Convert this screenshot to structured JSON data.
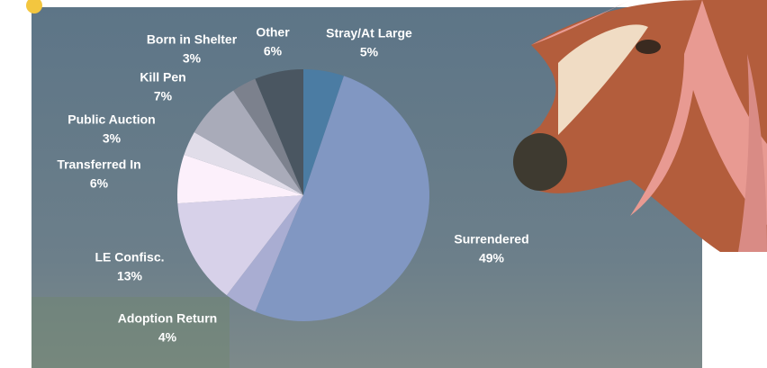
{
  "chart_data": {
    "type": "pie",
    "categories": [
      "Stray/At Large",
      "Surrendered",
      "Adoption Return",
      "LE Confisc.",
      "Transferred In",
      "Public Auction",
      "Kill Pen",
      "Born in Shelter",
      "Other"
    ],
    "values": [
      5,
      49,
      4,
      13,
      6,
      3,
      7,
      3,
      6
    ],
    "value_labels": [
      "5%",
      "49%",
      "4%",
      "13%",
      "6%",
      "3%",
      "7%",
      "3%",
      "6%"
    ],
    "colors": [
      "#4b7ca3",
      "#8197c2",
      "#a9add2",
      "#d7d1e9",
      "#fcf0fb",
      "#e1dde9",
      "#a9abb9",
      "#7c818d",
      "#4a5661"
    ]
  }
}
